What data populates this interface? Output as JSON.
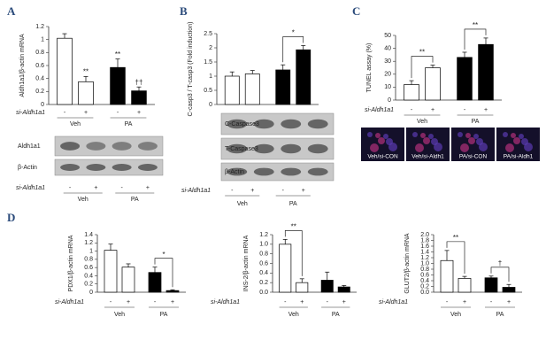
{
  "chart_data": [
    {
      "type": "bar",
      "panel": "A",
      "y_label": "Aldh1a1/β-actin mRNA",
      "categories": [
        "-",
        "+",
        "-",
        "+"
      ],
      "groups": [
        "Veh",
        "PA"
      ],
      "si_label": "si-Aldh1a1",
      "values": [
        1.02,
        0.35,
        0.57,
        0.21
      ],
      "errors": [
        0.07,
        0.08,
        0.13,
        0.06
      ],
      "colors": [
        "#ffffff",
        "#ffffff",
        "#000000",
        "#000000"
      ],
      "value_annotations": [
        null,
        "**",
        "**",
        "††"
      ],
      "brackets": [],
      "ylim": [
        0,
        1.2
      ],
      "yticks": [
        0,
        0.2,
        0.4,
        0.6,
        0.8,
        1,
        1.2
      ],
      "blot": {
        "rows": [
          "Aldh1a1",
          "β-Actin"
        ],
        "si_label": "si-Aldh1a1",
        "categories": [
          "-",
          "+",
          "-",
          "+"
        ],
        "groups": [
          "Veh",
          "PA"
        ]
      }
    },
    {
      "type": "bar",
      "panel": "B",
      "y_label": "C-casp3 / T-casp3 (Fold induction)",
      "categories": [
        "-",
        "+",
        "-",
        "+"
      ],
      "groups": [
        "Veh",
        "PA"
      ],
      "si_label": "si-Aldh1a1",
      "values": [
        1.0,
        1.08,
        1.22,
        1.93
      ],
      "errors": [
        0.15,
        0.12,
        0.18,
        0.15
      ],
      "colors": [
        "#ffffff",
        "#ffffff",
        "#000000",
        "#000000"
      ],
      "value_annotations": [
        null,
        null,
        null,
        null
      ],
      "brackets": [
        "*"
      ],
      "ylim": [
        0,
        2.5
      ],
      "yticks": [
        0,
        0.5,
        1,
        1.5,
        2,
        2.5
      ],
      "blot": {
        "rows": [
          "C-Caspase3",
          "T-Caspase3",
          "β-Actin"
        ]
      }
    },
    {
      "type": "bar",
      "panel": "C",
      "y_label": "TUNEL assay (%)",
      "categories": [
        "-",
        "+",
        "-",
        "+"
      ],
      "groups": [
        "Veh",
        "PA"
      ],
      "si_label": "si-Aldh1a1",
      "values": [
        12,
        25,
        33,
        43
      ],
      "errors": [
        3,
        2,
        4,
        5
      ],
      "colors": [
        "#ffffff",
        "#ffffff",
        "#000000",
        "#000000"
      ],
      "value_annotations": [
        null,
        null,
        null,
        null
      ],
      "brackets": [
        "**",
        "**"
      ],
      "ylim": [
        0,
        50
      ],
      "yticks": [
        0,
        10,
        20,
        30,
        40,
        50
      ],
      "images": [
        "Veh/si-CON",
        "Veh/si-Aldh1",
        "PA/si-CON",
        "PA/si-Aldh1"
      ]
    },
    {
      "type": "bar",
      "panel": "D",
      "y_label": "PDX1/β-actin mRNA",
      "categories": [
        "-",
        "+",
        "-",
        "+"
      ],
      "groups": [
        "Veh",
        "PA"
      ],
      "si_label": "si-Aldh1a1",
      "values": [
        1.02,
        0.61,
        0.48,
        0.04
      ],
      "errors": [
        0.15,
        0.08,
        0.13,
        0.02
      ],
      "colors": [
        "#ffffff",
        "#ffffff",
        "#000000",
        "#000000"
      ],
      "value_annotations": [
        null,
        null,
        null,
        null
      ],
      "brackets": [
        "*"
      ],
      "ylim": [
        0,
        1.4
      ],
      "yticks": [
        0,
        0.2,
        0.4,
        0.6,
        0.8,
        1,
        1.2,
        1.4
      ]
    },
    {
      "type": "bar",
      "y_label": "INS-2/β-actin mRNA",
      "categories": [
        "-",
        "+",
        "-",
        "+"
      ],
      "groups": [
        "Veh",
        "PA"
      ],
      "si_label": "si-Aldh1a1",
      "values": [
        1.0,
        0.2,
        0.25,
        0.11
      ],
      "errors": [
        0.1,
        0.08,
        0.17,
        0.03
      ],
      "colors": [
        "#ffffff",
        "#ffffff",
        "#000000",
        "#000000"
      ],
      "value_annotations": [
        null,
        null,
        null,
        null
      ],
      "brackets": [
        "**"
      ],
      "ylim": [
        0,
        1.2
      ],
      "yticks": [
        {
          "value": 0,
          "label": "0.0"
        },
        0.2,
        0.4,
        0.6,
        0.8,
        {
          "value": 1,
          "label": "1.0"
        },
        1.2
      ]
    },
    {
      "type": "bar",
      "y_label": "GLUT2/β-actin mRNA",
      "categories": [
        "-",
        "+",
        "-",
        "+"
      ],
      "groups": [
        "Veh",
        "PA"
      ],
      "si_label": "si-Aldh1a1",
      "values": [
        1.1,
        0.48,
        0.5,
        0.17
      ],
      "errors": [
        0.35,
        0.07,
        0.06,
        0.1
      ],
      "colors": [
        "#ffffff",
        "#ffffff",
        "#000000",
        "#000000"
      ],
      "value_annotations": [
        null,
        null,
        null,
        null
      ],
      "brackets": [
        "**",
        "†"
      ],
      "ylim": [
        0,
        2
      ],
      "yticks": [
        {
          "value": 0,
          "label": "0.0"
        },
        0.2,
        0.4,
        0.6,
        0.8,
        {
          "value": 1,
          "label": "1.0"
        },
        1.2,
        1.4,
        1.6,
        1.8,
        {
          "value": 2,
          "label": "2.0"
        }
      ]
    }
  ]
}
